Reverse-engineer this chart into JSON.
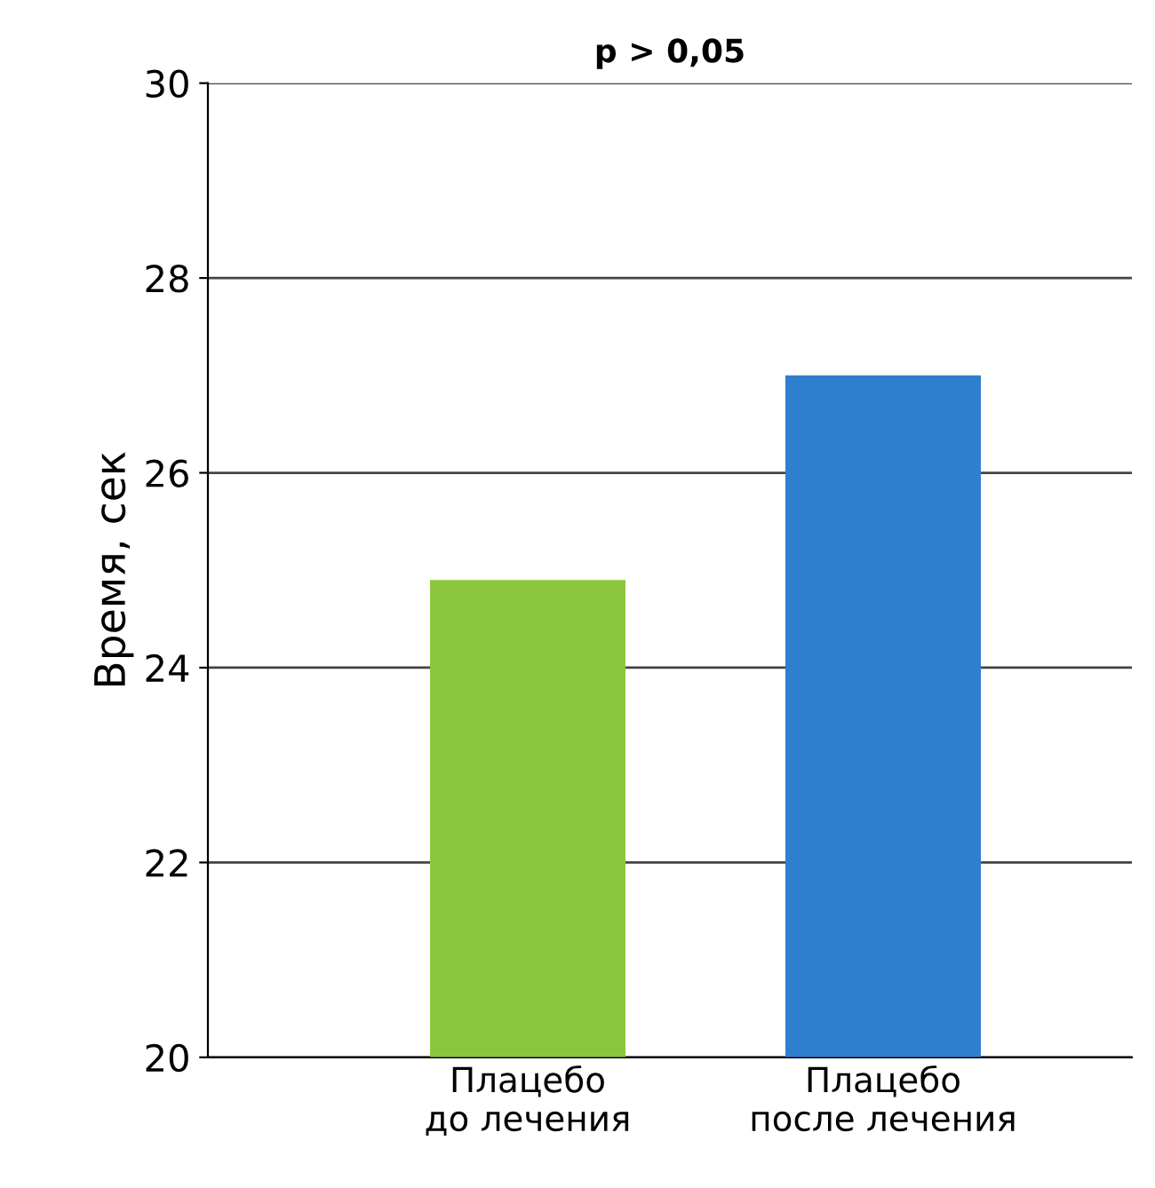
{
  "chart_data": {
    "type": "bar",
    "ylabel": "Время, сек",
    "annotations": [
      "p > 0,05"
    ],
    "categories": [
      "Плацебо\nдо лечения",
      "Плацебо\nпосле лечения"
    ],
    "values": [
      24.9,
      27.0
    ],
    "colors": [
      "#8cc63f",
      "#2f7fcf"
    ],
    "ylim": [
      20,
      30
    ],
    "yticks": [
      20,
      22,
      24,
      26,
      28,
      30
    ],
    "grid": "y"
  }
}
